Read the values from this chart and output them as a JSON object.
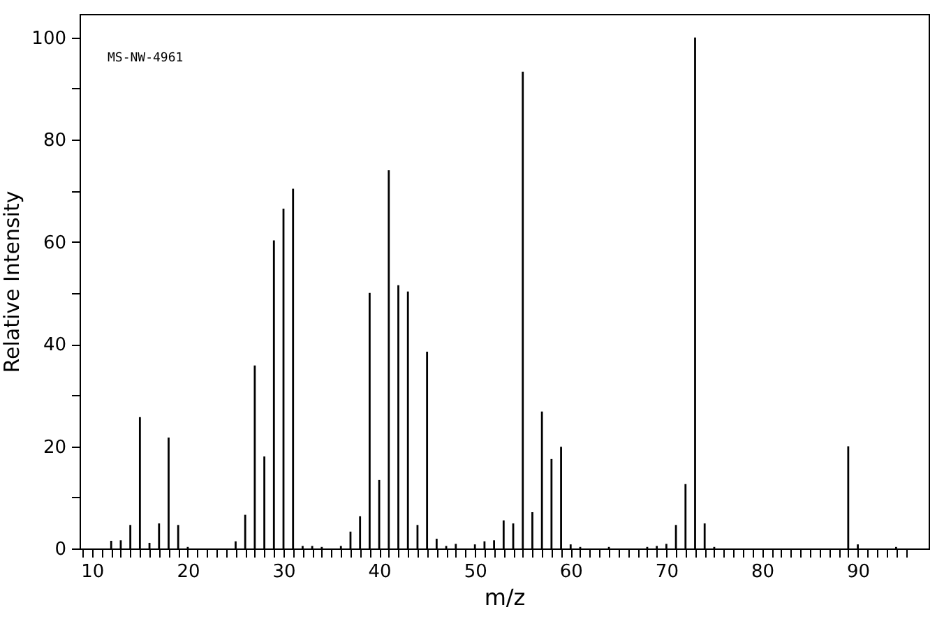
{
  "chart_data": {
    "type": "bar",
    "xlabel": "m/z",
    "ylabel": "Relative Intensity",
    "annotations": [
      "MS-NW-4961"
    ],
    "x": [
      12,
      13,
      14,
      15,
      16,
      17,
      18,
      19,
      20,
      25,
      26,
      27,
      28,
      29,
      30,
      31,
      32,
      33,
      34,
      36,
      37,
      38,
      39,
      40,
      41,
      42,
      43,
      44,
      45,
      46,
      47,
      48,
      50,
      51,
      52,
      53,
      54,
      55,
      56,
      57,
      58,
      59,
      60,
      61,
      64,
      68,
      69,
      70,
      71,
      72,
      73,
      74,
      75,
      89,
      90,
      94
    ],
    "series": [
      {
        "color": "#000000",
        "values": [
          1.5,
          1.6,
          4.6,
          25.7,
          1.1,
          4.9,
          21.7,
          4.6,
          0.3,
          1.4,
          6.6,
          35.8,
          18,
          60.3,
          66.5,
          70.4,
          0.5,
          0.5,
          0.3,
          0.5,
          3.3,
          6.3,
          50,
          13.4,
          74,
          51.5,
          50.3,
          4.6,
          38.5,
          1.9,
          0.5,
          0.9,
          0.8,
          1.4,
          1.6,
          5.5,
          4.9,
          93.3,
          7.1,
          26.8,
          17.5,
          19.9,
          0.8,
          0.3,
          0.3,
          0.3,
          0.5,
          0.9,
          4.6,
          12.6,
          100,
          4.9,
          0.3,
          20,
          0.8,
          0.3
        ]
      }
    ],
    "xlim": [
      8.7,
      97.4
    ],
    "ylim": [
      0,
      104.6
    ],
    "xticks": [
      {
        "value": 9,
        "label": null
      },
      10,
      {
        "value": 11,
        "label": null
      },
      {
        "value": 12,
        "label": null
      },
      {
        "value": 13,
        "label": null
      },
      {
        "value": 14,
        "label": null
      },
      {
        "value": 15,
        "label": null
      },
      {
        "value": 16,
        "label": null
      },
      {
        "value": 17,
        "label": null
      },
      {
        "value": 18,
        "label": null
      },
      {
        "value": 19,
        "label": null
      },
      20,
      {
        "value": 21,
        "label": null
      },
      {
        "value": 22,
        "label": null
      },
      {
        "value": 23,
        "label": null
      },
      {
        "value": 24,
        "label": null
      },
      {
        "value": 25,
        "label": null
      },
      {
        "value": 26,
        "label": null
      },
      {
        "value": 27,
        "label": null
      },
      {
        "value": 28,
        "label": null
      },
      {
        "value": 29,
        "label": null
      },
      30,
      {
        "value": 31,
        "label": null
      },
      {
        "value": 32,
        "label": null
      },
      {
        "value": 33,
        "label": null
      },
      {
        "value": 34,
        "label": null
      },
      {
        "value": 35,
        "label": null
      },
      {
        "value": 36,
        "label": null
      },
      {
        "value": 37,
        "label": null
      },
      {
        "value": 38,
        "label": null
      },
      {
        "value": 39,
        "label": null
      },
      40,
      {
        "value": 41,
        "label": null
      },
      {
        "value": 42,
        "label": null
      },
      {
        "value": 43,
        "label": null
      },
      {
        "value": 44,
        "label": null
      },
      {
        "value": 45,
        "label": null
      },
      {
        "value": 46,
        "label": null
      },
      {
        "value": 47,
        "label": null
      },
      {
        "value": 48,
        "label": null
      },
      {
        "value": 49,
        "label": null
      },
      50,
      {
        "value": 51,
        "label": null
      },
      {
        "value": 52,
        "label": null
      },
      {
        "value": 53,
        "label": null
      },
      {
        "value": 54,
        "label": null
      },
      {
        "value": 55,
        "label": null
      },
      {
        "value": 56,
        "label": null
      },
      {
        "value": 57,
        "label": null
      },
      {
        "value": 58,
        "label": null
      },
      {
        "value": 59,
        "label": null
      },
      60,
      {
        "value": 61,
        "label": null
      },
      {
        "value": 62,
        "label": null
      },
      {
        "value": 63,
        "label": null
      },
      {
        "value": 64,
        "label": null
      },
      {
        "value": 65,
        "label": null
      },
      {
        "value": 66,
        "label": null
      },
      {
        "value": 67,
        "label": null
      },
      {
        "value": 68,
        "label": null
      },
      {
        "value": 69,
        "label": null
      },
      70,
      {
        "value": 71,
        "label": null
      },
      {
        "value": 72,
        "label": null
      },
      {
        "value": 73,
        "label": null
      },
      {
        "value": 74,
        "label": null
      },
      {
        "value": 75,
        "label": null
      },
      {
        "value": 76,
        "label": null
      },
      {
        "value": 77,
        "label": null
      },
      {
        "value": 78,
        "label": null
      },
      {
        "value": 79,
        "label": null
      },
      80,
      {
        "value": 81,
        "label": null
      },
      {
        "value": 82,
        "label": null
      },
      {
        "value": 83,
        "label": null
      },
      {
        "value": 84,
        "label": null
      },
      {
        "value": 85,
        "label": null
      },
      {
        "value": 86,
        "label": null
      },
      {
        "value": 87,
        "label": null
      },
      {
        "value": 88,
        "label": null
      },
      {
        "value": 89,
        "label": null
      },
      90,
      {
        "value": 91,
        "label": null
      },
      {
        "value": 92,
        "label": null
      },
      {
        "value": 93,
        "label": null
      },
      {
        "value": 94,
        "label": null
      },
      {
        "value": 95,
        "label": null
      }
    ],
    "yticks": [
      0,
      {
        "value": 10,
        "label": null
      },
      20,
      {
        "value": 30,
        "label": null
      },
      40,
      {
        "value": 50,
        "label": null
      },
      60,
      {
        "value": 70,
        "label": null
      },
      80,
      {
        "value": 90,
        "label": null
      },
      100
    ],
    "tick_labels": "xy"
  }
}
